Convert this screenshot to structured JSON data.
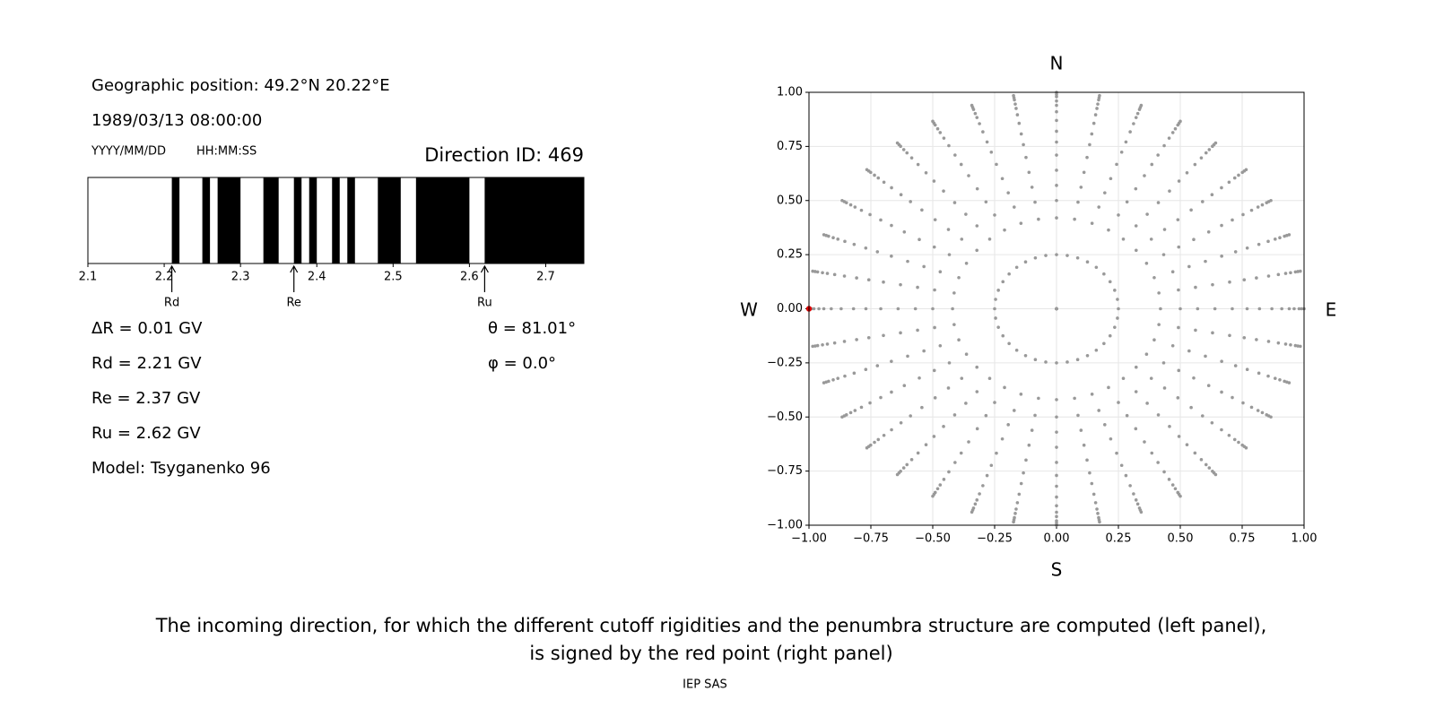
{
  "info": {
    "position": "Geographic position: 49.2°N 20.22°E",
    "datetime": "1989/03/13 08:00:00",
    "date_format": "YYYY/MM/DD",
    "time_format": "HH:MM:SS",
    "direction": "Direction ID: 469",
    "delta_r": "ΔR = 0.01 GV",
    "rd": "Rd = 2.21 GV",
    "re": "Re = 2.37 GV",
    "ru": "Ru = 2.62 GV",
    "model": "Model: Tsyganenko 96",
    "theta": "θ = 81.01°",
    "phi": "φ = 0.0°"
  },
  "chart_data": [
    {
      "type": "penumbra",
      "xlim": [
        2.1,
        2.75
      ],
      "xticks": [
        2.1,
        2.2,
        2.3,
        2.4,
        2.5,
        2.6,
        2.7
      ],
      "allowed_color": "#ffffff",
      "forbidden_color": "#000000",
      "forbidden": [
        [
          2.21,
          2.22
        ],
        [
          2.25,
          2.26
        ],
        [
          2.27,
          2.3
        ],
        [
          2.33,
          2.35
        ],
        [
          2.37,
          2.38
        ],
        [
          2.39,
          2.4
        ],
        [
          2.42,
          2.43
        ],
        [
          2.44,
          2.45
        ],
        [
          2.48,
          2.51
        ],
        [
          2.53,
          2.6
        ],
        [
          2.62,
          2.75
        ]
      ],
      "markers": [
        {
          "label": "Rd",
          "value": 2.21
        },
        {
          "label": "Re",
          "value": 2.37
        },
        {
          "label": "Ru",
          "value": 2.62
        }
      ]
    },
    {
      "type": "polar-scatter",
      "xlim": [
        -1,
        1
      ],
      "ylim": [
        -1,
        1
      ],
      "xticks": [
        {
          "value": -1,
          "label": "−1.00"
        },
        {
          "value": -0.75,
          "label": "−0.75"
        },
        {
          "value": -0.5,
          "label": "−0.50"
        },
        {
          "value": -0.25,
          "label": "−0.25"
        },
        {
          "value": 0,
          "label": "0.00"
        },
        0.25,
        {
          "value": 0.5,
          "label": "0.50"
        },
        0.75,
        {
          "value": 1,
          "label": "1.00"
        }
      ],
      "yticks": [
        {
          "value": -1,
          "label": "−1.00"
        },
        {
          "value": -0.75,
          "label": "−0.75"
        },
        {
          "value": -0.5,
          "label": "−0.50"
        },
        {
          "value": -0.25,
          "label": "−0.25"
        },
        {
          "value": 0,
          "label": "0.00"
        },
        0.25,
        {
          "value": 0.5,
          "label": "0.50"
        },
        0.75,
        {
          "value": 1,
          "label": "1.00"
        }
      ],
      "grid": true,
      "color": "#999999",
      "radii": [
        0,
        0.25,
        0.42,
        0.5,
        0.57,
        0.64,
        0.71,
        0.77,
        0.82,
        0.87,
        0.91,
        0.94,
        0.96,
        0.98,
        0.99,
        1.0
      ],
      "azimuths": [
        0,
        10,
        20,
        30,
        40,
        50,
        60,
        70,
        80,
        90,
        100,
        110,
        120,
        130,
        140,
        150,
        160,
        170,
        180,
        190,
        200,
        210,
        220,
        230,
        240,
        250,
        260,
        270,
        280,
        290,
        300,
        310,
        320,
        330,
        340,
        350
      ],
      "highlight": {
        "x": -1.0,
        "y": 0.0,
        "color": "#dd0000"
      },
      "directions": {
        "north": "N",
        "south": "S",
        "west": "W",
        "east": "E"
      }
    }
  ],
  "caption": [
    "The incoming direction, for which the different cutoff rigidities and the penumbra structure are computed (left panel),",
    "is signed by the red point (right panel)"
  ],
  "footer": "IEP SAS"
}
